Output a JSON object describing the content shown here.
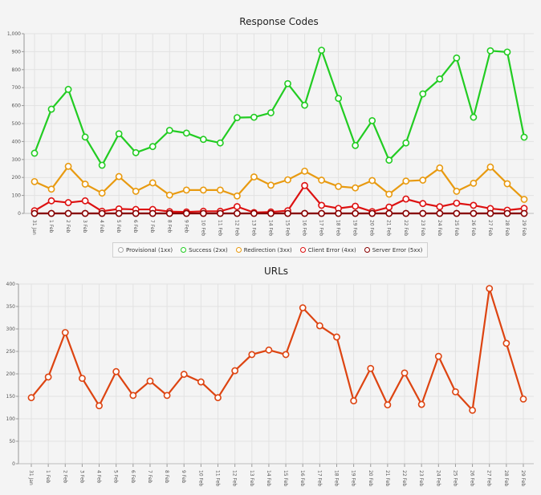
{
  "chart_data": [
    {
      "type": "line",
      "title": "Response Codes",
      "ylim": [
        0,
        1000
      ],
      "yticks": [
        "0",
        "100",
        "200",
        "300",
        "400",
        "500",
        "600",
        "700",
        "800",
        "900",
        "1,000"
      ],
      "grid": true,
      "legend_placement": "bottom",
      "categories": [
        "31 Jan",
        "1 Feb",
        "2 Feb",
        "3 Feb",
        "4 Feb",
        "5 Feb",
        "6 Feb",
        "7 Feb",
        "8 Feb",
        "9 Feb",
        "10 Feb",
        "11 Feb",
        "12 Feb",
        "13 Feb",
        "14 Feb",
        "15 Feb",
        "16 Feb",
        "17 Feb",
        "18 Feb",
        "19 Feb",
        "20 Feb",
        "21 Feb",
        "22 Feb",
        "23 Feb",
        "24 Feb",
        "25 Feb",
        "26 Feb",
        "27 Feb",
        "28 Feb",
        "29 Feb"
      ],
      "series": [
        {
          "name": "Provisional (1xx)",
          "color": "#aaaaaa",
          "values": [
            0,
            0,
            0,
            0,
            0,
            0,
            0,
            0,
            0,
            0,
            0,
            0,
            0,
            0,
            0,
            0,
            0,
            0,
            0,
            0,
            0,
            0,
            0,
            0,
            0,
            0,
            0,
            0,
            0,
            0
          ]
        },
        {
          "name": "Success (2xx)",
          "color": "#22cc22",
          "values": [
            335,
            580,
            690,
            425,
            268,
            443,
            338,
            372,
            462,
            447,
            412,
            392,
            533,
            535,
            560,
            722,
            602,
            908,
            640,
            378,
            516,
            296,
            392,
            665,
            748,
            865,
            535,
            905,
            898,
            424
          ]
        },
        {
          "name": "Redirection (3xx)",
          "color": "#e89a10",
          "values": [
            177,
            135,
            262,
            163,
            113,
            205,
            123,
            170,
            102,
            130,
            130,
            130,
            97,
            203,
            157,
            187,
            235,
            185,
            150,
            142,
            183,
            107,
            180,
            185,
            253,
            123,
            168,
            258,
            165,
            78
          ]
        },
        {
          "name": "Client Error (4xx)",
          "color": "#dd1111",
          "values": [
            15,
            70,
            60,
            70,
            12,
            25,
            22,
            22,
            10,
            8,
            12,
            12,
            38,
            5,
            8,
            15,
            155,
            45,
            28,
            40,
            10,
            35,
            80,
            55,
            37,
            57,
            45,
            27,
            18,
            28
          ]
        },
        {
          "name": "Server Error (5xx)",
          "color": "#880000",
          "values": [
            0,
            0,
            0,
            0,
            0,
            0,
            0,
            0,
            0,
            0,
            0,
            0,
            0,
            0,
            0,
            0,
            0,
            0,
            0,
            0,
            0,
            0,
            0,
            0,
            0,
            0,
            0,
            0,
            0,
            0
          ]
        }
      ]
    },
    {
      "type": "line",
      "title": "URLs",
      "ylim": [
        0,
        400
      ],
      "yticks": [
        "0",
        "50",
        "100",
        "150",
        "200",
        "250",
        "300",
        "350",
        "400"
      ],
      "grid": true,
      "categories": [
        "31 Jan",
        "1 Feb",
        "2 Feb",
        "3 Feb",
        "4 Feb",
        "5 Feb",
        "6 Feb",
        "7 Feb",
        "8 Feb",
        "9 Feb",
        "10 Feb",
        "11 Feb",
        "12 Feb",
        "13 Feb",
        "14 Feb",
        "15 Feb",
        "16 Feb",
        "17 Feb",
        "18 Feb",
        "19 Feb",
        "20 Feb",
        "21 Feb",
        "22 Feb",
        "23 Feb",
        "24 Feb",
        "25 Feb",
        "26 Feb",
        "27 Feb",
        "28 Feb",
        "29 Feb"
      ],
      "series": [
        {
          "color": "#dd4411",
          "values": [
            147,
            193,
            292,
            190,
            129,
            205,
            152,
            184,
            152,
            199,
            182,
            147,
            207,
            243,
            253,
            243,
            347,
            307,
            282,
            140,
            212,
            131,
            202,
            132,
            239,
            160,
            119,
            390,
            268,
            144
          ]
        }
      ]
    }
  ]
}
